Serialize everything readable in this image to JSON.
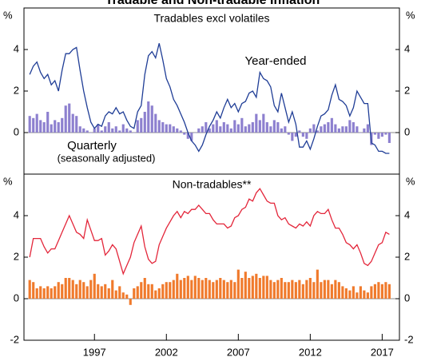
{
  "title": "Tradable and Non-tradable Inflation",
  "chart_data": [
    {
      "type": "combo",
      "title": "Tradables excl volatiles",
      "y_unit": "%",
      "annotations": [
        {
          "text": "Year-ended",
          "color": "#1f3d96"
        },
        {
          "text": "Quarterly",
          "color": "#8d80cf"
        },
        {
          "text": "(seasonally adjusted)",
          "color": "#8d80cf"
        }
      ],
      "xlim": [
        1992.1,
        2018.2
      ],
      "ylim": [
        -2,
        6
      ],
      "yticks": [
        0,
        2,
        4
      ],
      "x": [
        1992.5,
        1992.75,
        1993,
        1993.25,
        1993.5,
        1993.75,
        1994,
        1994.25,
        1994.5,
        1994.75,
        1995,
        1995.25,
        1995.5,
        1995.75,
        1996,
        1996.25,
        1996.5,
        1996.75,
        1997,
        1997.25,
        1997.5,
        1997.75,
        1998,
        1998.25,
        1998.5,
        1998.75,
        1999,
        1999.25,
        1999.5,
        1999.75,
        2000,
        2000.25,
        2000.5,
        2000.75,
        2001,
        2001.25,
        2001.5,
        2001.75,
        2002,
        2002.25,
        2002.5,
        2002.75,
        2003,
        2003.25,
        2003.5,
        2003.75,
        2004,
        2004.25,
        2004.5,
        2004.75,
        2005,
        2005.25,
        2005.5,
        2005.75,
        2006,
        2006.25,
        2006.5,
        2006.75,
        2007,
        2007.25,
        2007.5,
        2007.75,
        2008,
        2008.25,
        2008.5,
        2008.75,
        2009,
        2009.25,
        2009.5,
        2009.75,
        2010,
        2010.25,
        2010.5,
        2010.75,
        2011,
        2011.25,
        2011.5,
        2011.75,
        2012,
        2012.25,
        2012.5,
        2012.75,
        2013,
        2013.25,
        2013.5,
        2013.75,
        2014,
        2014.25,
        2014.5,
        2014.75,
        2015,
        2015.25,
        2015.5,
        2015.75,
        2016,
        2016.25,
        2016.5,
        2016.75,
        2017,
        2017.25,
        2017.5
      ],
      "series": [
        {
          "name": "Quarterly",
          "type": "bar",
          "color": "#8d80cf",
          "values": [
            0.8,
            0.7,
            0.9,
            0.6,
            0.5,
            1.0,
            0.4,
            0.6,
            0.5,
            0.7,
            1.3,
            1.4,
            0.9,
            0.8,
            0.3,
            0.2,
            0.1,
            0.0,
            0.2,
            0.4,
            0.1,
            0.3,
            0.5,
            0.2,
            0.3,
            0.1,
            0.4,
            0.2,
            0.1,
            0.0,
            0.6,
            0.7,
            1.0,
            1.5,
            1.3,
            0.9,
            0.6,
            0.5,
            0.4,
            0.4,
            0.3,
            0.2,
            0.1,
            -0.1,
            -0.3,
            -0.4,
            0.0,
            0.2,
            0.3,
            0.5,
            0.2,
            0.4,
            0.6,
            0.3,
            0.5,
            0.4,
            0.2,
            0.6,
            0.4,
            0.7,
            0.3,
            0.4,
            0.5,
            0.9,
            0.6,
            0.9,
            0.5,
            0.3,
            0.6,
            0.5,
            0.2,
            0.3,
            -0.1,
            -0.4,
            -0.2,
            0.1,
            -0.2,
            -0.3,
            0.2,
            0.4,
            0.1,
            0.3,
            0.4,
            0.5,
            0.7,
            0.4,
            0.2,
            0.3,
            0.3,
            0.6,
            0.5,
            0.3,
            0.0,
            0.2,
            0.4,
            -0.6,
            -0.1,
            -0.3,
            -0.2,
            -0.1,
            -0.5
          ]
        },
        {
          "name": "Year-ended",
          "type": "line",
          "color": "#1f3d96",
          "values": [
            2.8,
            3.2,
            3.4,
            2.9,
            2.6,
            2.8,
            2.3,
            2.5,
            2.0,
            3.0,
            3.8,
            3.8,
            4.0,
            4.1,
            3.0,
            2.0,
            1.2,
            0.5,
            0.2,
            0.4,
            0.3,
            0.8,
            1.0,
            0.9,
            1.2,
            0.9,
            1.0,
            0.6,
            0.3,
            0.2,
            1.0,
            1.3,
            2.8,
            3.7,
            3.9,
            3.6,
            4.3,
            3.5,
            2.6,
            2.2,
            1.6,
            1.3,
            0.9,
            0.5,
            0.0,
            -0.4,
            -0.6,
            -0.9,
            -0.6,
            -0.1,
            0.3,
            0.6,
            1.0,
            0.7,
            1.2,
            1.6,
            1.2,
            1.4,
            1.0,
            1.4,
            1.5,
            1.9,
            2.0,
            1.7,
            2.9,
            2.6,
            2.5,
            2.2,
            1.3,
            1.0,
            1.9,
            1.2,
            0.5,
            1.0,
            0.4,
            -0.7,
            -0.7,
            -0.4,
            -0.8,
            -0.3,
            0.3,
            0.8,
            0.9,
            1.1,
            1.8,
            2.3,
            1.6,
            1.5,
            1.3,
            0.8,
            1.2,
            2.0,
            1.7,
            1.4,
            1.4,
            -0.5,
            -0.6,
            -0.9,
            -0.9,
            -1.0,
            -1.0
          ]
        }
      ]
    },
    {
      "type": "combo",
      "title": "Non-tradables**",
      "y_unit": "%",
      "xlim": [
        1992.1,
        2018.2
      ],
      "xticks": [
        1997,
        2002,
        2007,
        2012,
        2017
      ],
      "ylim": [
        -2,
        6
      ],
      "yticks": [
        -2,
        0,
        2,
        4
      ],
      "x": [
        1992.5,
        1992.75,
        1993,
        1993.25,
        1993.5,
        1993.75,
        1994,
        1994.25,
        1994.5,
        1994.75,
        1995,
        1995.25,
        1995.5,
        1995.75,
        1996,
        1996.25,
        1996.5,
        1996.75,
        1997,
        1997.25,
        1997.5,
        1997.75,
        1998,
        1998.25,
        1998.5,
        1998.75,
        1999,
        1999.25,
        1999.5,
        1999.75,
        2000,
        2000.25,
        2000.5,
        2000.75,
        2001,
        2001.25,
        2001.5,
        2001.75,
        2002,
        2002.25,
        2002.5,
        2002.75,
        2003,
        2003.25,
        2003.5,
        2003.75,
        2004,
        2004.25,
        2004.5,
        2004.75,
        2005,
        2005.25,
        2005.5,
        2005.75,
        2006,
        2006.25,
        2006.5,
        2006.75,
        2007,
        2007.25,
        2007.5,
        2007.75,
        2008,
        2008.25,
        2008.5,
        2008.75,
        2009,
        2009.25,
        2009.5,
        2009.75,
        2010,
        2010.25,
        2010.5,
        2010.75,
        2011,
        2011.25,
        2011.5,
        2011.75,
        2012,
        2012.25,
        2012.5,
        2012.75,
        2013,
        2013.25,
        2013.5,
        2013.75,
        2014,
        2014.25,
        2014.5,
        2014.75,
        2015,
        2015.25,
        2015.5,
        2015.75,
        2016,
        2016.25,
        2016.5,
        2016.75,
        2017,
        2017.25,
        2017.5
      ],
      "series": [
        {
          "name": "Quarterly",
          "type": "bar",
          "color": "#f07a2c",
          "values": [
            0.9,
            0.8,
            0.5,
            0.6,
            0.5,
            0.6,
            0.5,
            0.6,
            0.8,
            0.7,
            1.0,
            1.0,
            0.9,
            0.7,
            0.9,
            0.8,
            0.6,
            0.9,
            1.2,
            0.7,
            0.6,
            0.7,
            0.5,
            0.9,
            0.4,
            0.6,
            0.3,
            0.2,
            -0.3,
            0.5,
            0.6,
            0.8,
            1.0,
            0.7,
            0.7,
            0.4,
            0.5,
            0.7,
            0.8,
            0.8,
            0.9,
            1.2,
            0.9,
            1.0,
            1.1,
            0.9,
            1.1,
            1.0,
            0.9,
            1.0,
            0.9,
            0.8,
            0.9,
            1.0,
            0.9,
            0.8,
            0.9,
            0.8,
            1.4,
            1.0,
            1.3,
            1.0,
            1.1,
            1.2,
            1.0,
            1.1,
            1.1,
            0.9,
            0.8,
            0.9,
            1.0,
            0.8,
            0.8,
            0.9,
            0.8,
            0.9,
            0.7,
            0.9,
            1.0,
            0.8,
            1.4,
            0.8,
            0.9,
            0.9,
            0.7,
            0.9,
            0.8,
            0.6,
            0.5,
            0.4,
            0.6,
            0.3,
            0.6,
            0.4,
            0.3,
            0.6,
            0.7,
            0.8,
            0.7,
            0.8,
            0.7
          ]
        },
        {
          "name": "Year-ended",
          "type": "line",
          "color": "#e3263a",
          "values": [
            2.0,
            2.9,
            2.9,
            2.9,
            2.5,
            2.2,
            2.4,
            2.4,
            2.8,
            3.2,
            3.6,
            4.0,
            3.6,
            3.2,
            3.1,
            2.9,
            3.8,
            3.3,
            2.8,
            2.8,
            2.9,
            2.1,
            2.3,
            2.6,
            2.4,
            1.8,
            1.2,
            1.6,
            2.0,
            2.7,
            3.1,
            3.5,
            2.5,
            1.9,
            1.7,
            1.8,
            2.6,
            3.0,
            3.4,
            3.7,
            4.0,
            4.2,
            3.9,
            4.2,
            4.1,
            4.3,
            4.3,
            4.5,
            4.3,
            4.1,
            4.1,
            3.8,
            3.6,
            3.6,
            3.6,
            3.4,
            3.5,
            3.9,
            4.0,
            4.3,
            4.4,
            4.8,
            4.7,
            5.1,
            5.3,
            5.0,
            4.7,
            4.6,
            4.6,
            4.0,
            3.8,
            3.9,
            3.6,
            3.5,
            3.4,
            3.6,
            3.5,
            3.7,
            3.5,
            4.0,
            4.2,
            4.1,
            4.1,
            4.3,
            3.8,
            3.4,
            3.4,
            3.1,
            2.7,
            2.6,
            2.4,
            2.6,
            2.2,
            1.7,
            1.6,
            1.8,
            2.2,
            2.6,
            2.7,
            3.2,
            3.1
          ]
        }
      ]
    }
  ]
}
